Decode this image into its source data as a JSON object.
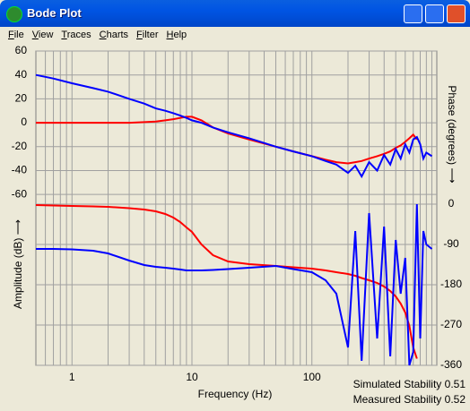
{
  "window": {
    "title": "Bode Plot",
    "menu": [
      "File",
      "View",
      "Traces",
      "Charts",
      "Filter",
      "Help"
    ]
  },
  "status": [
    "Simulated Stability 0.51",
    "Measured Stability 0.52"
  ],
  "chart_data": {
    "type": "line",
    "xlabel": "Frequency (Hz)",
    "ylabel": "Amplitude (dB) ⟶",
    "y2label": "Phase (degrees) ⟶",
    "xscale": "log",
    "grid": true,
    "xlim": [
      0.5,
      1100
    ],
    "xticks": [
      1,
      10,
      100
    ],
    "xminorticks": [
      0.6,
      0.7,
      0.8,
      0.9,
      2,
      3,
      4,
      5,
      6,
      7,
      8,
      9,
      20,
      30,
      40,
      50,
      60,
      70,
      80,
      90,
      200,
      300,
      400,
      500,
      600,
      700,
      800,
      900,
      1000
    ],
    "ylim": [
      -203,
      60
    ],
    "yticks": [
      -60,
      -40,
      -20,
      0,
      20,
      40,
      60
    ],
    "y2lim": [
      -360,
      342
    ],
    "y2ticks": [
      -360,
      -270,
      -180,
      -90,
      0
    ],
    "x": [
      0.5,
      0.7,
      1,
      1.5,
      2,
      3,
      4,
      5,
      6,
      7,
      8,
      9,
      10,
      12,
      15,
      20,
      30,
      50,
      70,
      100,
      130,
      160,
      200,
      230,
      260,
      300,
      350,
      400,
      450,
      500,
      550,
      600,
      650,
      700,
      750,
      800,
      850,
      900,
      1000
    ],
    "series": [
      {
        "color": "#ff0000",
        "axis": "y",
        "values": [
          0,
          0,
          0,
          0,
          0,
          0,
          0.5,
          1,
          2,
          3,
          4,
          5,
          5,
          2,
          -4,
          -9,
          -14,
          -20,
          -24,
          -28,
          -31,
          -33,
          -34,
          -33,
          -32,
          -30,
          -28,
          -26,
          -24,
          -21,
          -19,
          -16,
          -13,
          -10,
          -14,
          null,
          null,
          null,
          null
        ]
      },
      {
        "color": "#0000ff",
        "axis": "y",
        "values": [
          40,
          37,
          33,
          29,
          26,
          20,
          16,
          12,
          10,
          8,
          6,
          4,
          2,
          0,
          -4,
          -8,
          -13,
          -20,
          -24,
          -28,
          -32,
          -35,
          -42,
          -36,
          -45,
          -33,
          -40,
          -27,
          -35,
          -22,
          -30,
          -18,
          -25,
          -14,
          -12,
          -18,
          -30,
          -25,
          -28
        ]
      },
      {
        "color": "#ff0000",
        "axis": "y2",
        "values": [
          -2,
          -3,
          -4,
          -5,
          -6,
          -9,
          -12,
          -16,
          -22,
          -30,
          -40,
          -52,
          -62,
          -90,
          -114,
          -128,
          -134,
          -138,
          -141,
          -144,
          -148,
          -152,
          -156,
          -160,
          -165,
          -170,
          -176,
          -184,
          -194,
          -206,
          -222,
          -242,
          -272,
          -320,
          -345,
          null,
          null,
          null,
          null
        ]
      },
      {
        "color": "#0000ff",
        "axis": "y2",
        "values": [
          -100,
          -100,
          -101,
          -104,
          -110,
          -126,
          -136,
          -140,
          -142,
          -144,
          -146,
          -148,
          -148,
          -148,
          -147,
          -145,
          -142,
          -138,
          -145,
          -152,
          -170,
          -200,
          -320,
          -60,
          -350,
          -20,
          -300,
          -50,
          -340,
          -80,
          -200,
          -120,
          -360,
          -330,
          0,
          -300,
          -60,
          -90,
          -100
        ]
      }
    ]
  }
}
